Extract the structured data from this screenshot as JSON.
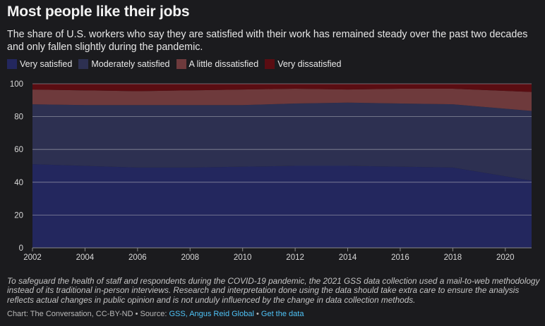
{
  "header": {
    "title": "Most people like their jobs",
    "subtitle": "The share of U.S. workers who say they are satisfied with their work has remained steady over the past two decades and only fallen slightly during the pandemic."
  },
  "footer": {
    "note": "To safeguard the health of staff and respondents during the COVID-19 pandemic, the 2021 GSS data collection used a mail-to-web methodology instead of its traditional in-person interviews. Research and interpretation done using the data should take extra care to ensure the analysis reflects actual changes in public opinion and is not unduly influenced by the change in data collection methods.",
    "credit_prefix": "Chart: The Conversation, CC-BY-ND • Source: ",
    "source_link": "GSS, Angus Reid Global",
    "separator": " • ",
    "data_link": "Get the data"
  },
  "chart_data": {
    "type": "area",
    "stacked": true,
    "x": [
      2002,
      2004,
      2006,
      2008,
      2010,
      2012,
      2014,
      2016,
      2018,
      2021
    ],
    "xlim": [
      2002,
      2021
    ],
    "xticks": [
      2002,
      2004,
      2006,
      2008,
      2010,
      2012,
      2014,
      2016,
      2018,
      2020
    ],
    "xtick_labels": [
      "2002",
      "2004",
      "2006",
      "2008",
      "2010",
      "2012",
      "2014",
      "2016",
      "2018",
      "2020"
    ],
    "ylim": [
      0,
      100
    ],
    "yticks": [
      0,
      20,
      40,
      60,
      80,
      100
    ],
    "ytick_labels": [
      "0",
      "20",
      "40",
      "60",
      "80",
      "100"
    ],
    "grid": true,
    "legend_position": "top-left",
    "series": [
      {
        "name": "Very satisfied",
        "color": "#23275e",
        "values": [
          51,
          50,
          49,
          49,
          49.5,
          50,
          50,
          49.5,
          49,
          41
        ]
      },
      {
        "name": "Moderately satisfied",
        "color": "#2d3051",
        "values": [
          36.5,
          37,
          38,
          38,
          37.5,
          38,
          38.5,
          38.5,
          38.5,
          42.5
        ]
      },
      {
        "name": "A little dissatisfied",
        "color": "#6e3a3c",
        "values": [
          9,
          9,
          8.5,
          9,
          9.5,
          9,
          8,
          9,
          9.5,
          11.5
        ]
      },
      {
        "name": "Very dissatisfied",
        "color": "#5a0d12",
        "values": [
          3.5,
          4,
          4.5,
          4,
          3.5,
          3,
          3.5,
          3,
          3,
          5
        ]
      }
    ]
  }
}
